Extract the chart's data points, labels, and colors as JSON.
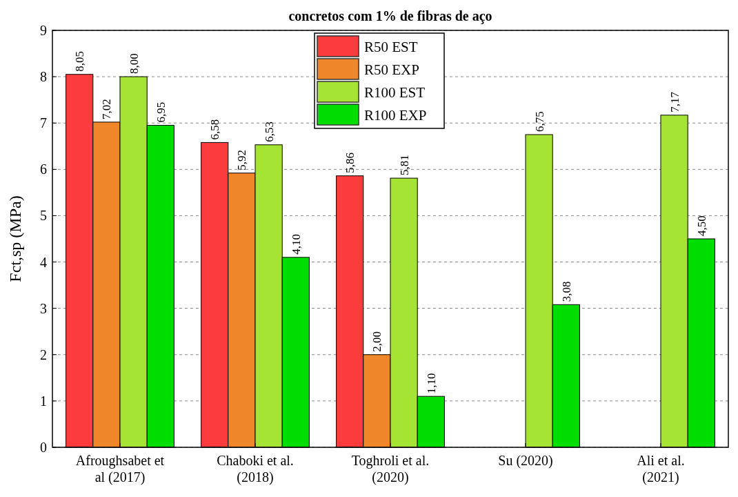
{
  "chart_data": {
    "type": "bar",
    "title": "concretos com 1% de fibras de aço",
    "ylabel": "Fct,sp (MPa)",
    "categories": [
      "Afroughsabet et al (2017)",
      "Chaboki et al. (2018)",
      "Toghroli et al. (2020)",
      "Su (2020)",
      "Ali et al. (2021)"
    ],
    "series": [
      {
        "name": "R50 EST",
        "color": "#fc3c3c",
        "values": [
          8.05,
          6.58,
          5.86,
          null,
          null
        ],
        "value_labels": [
          "8,05",
          "6,58",
          "5,86",
          null,
          null
        ]
      },
      {
        "name": "R50 EXP",
        "color": "#f0862a",
        "values": [
          7.02,
          5.92,
          2.0,
          null,
          null
        ],
        "value_labels": [
          "7,02",
          "5,92",
          "2,00",
          null,
          null
        ]
      },
      {
        "name": "R100 EST",
        "color": "#a6e433",
        "values": [
          8.0,
          6.53,
          5.81,
          6.75,
          7.17
        ],
        "value_labels": [
          "8,00",
          "6,53",
          "5,81",
          "6,75",
          "7,17"
        ]
      },
      {
        "name": "R100 EXP",
        "color": "#00dd00",
        "values": [
          6.95,
          4.1,
          1.1,
          3.08,
          4.5
        ],
        "value_labels": [
          "6,95",
          "4,10",
          "1,10",
          "3,08",
          "4,50"
        ]
      }
    ],
    "ylim": [
      0,
      9
    ],
    "yticks": [
      0,
      1,
      2,
      3,
      4,
      5,
      6,
      7,
      8,
      9
    ],
    "grid": "y",
    "legend": "top"
  }
}
